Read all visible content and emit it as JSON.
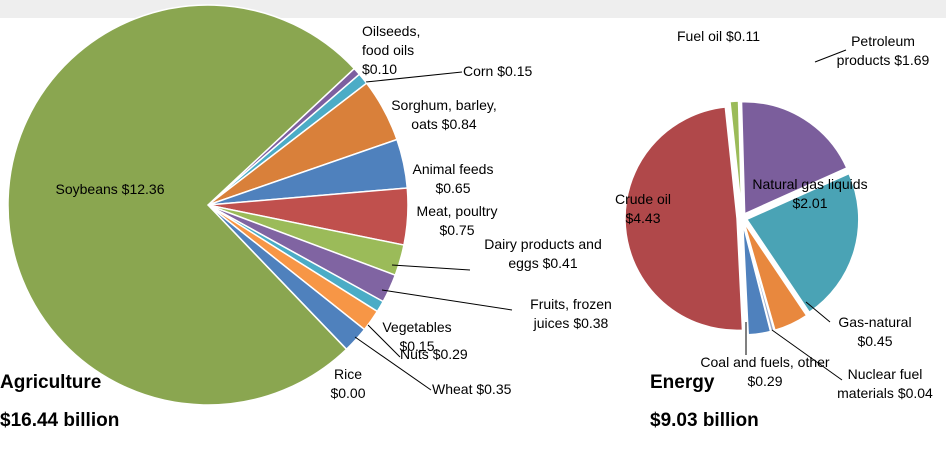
{
  "chart_data": [
    {
      "type": "pie",
      "title": "Agriculture",
      "subtitle": "$16.44 billion",
      "categories": [
        "Oilseeds, food oils",
        "Corn",
        "Sorghum, barley, oats",
        "Animal feeds",
        "Meat, poultry",
        "Dairy products and eggs",
        "Fruits, frozen juices",
        "Vegetables",
        "Nuts",
        "Wheat",
        "Rice",
        "Soybeans"
      ],
      "values": [
        0.1,
        0.15,
        0.84,
        0.65,
        0.75,
        0.41,
        0.38,
        0.15,
        0.29,
        0.35,
        0.0,
        12.36
      ],
      "value_labels": [
        "$0.10",
        "$0.15",
        "$0.84",
        "$0.65",
        "$0.75",
        "$0.41",
        "$0.38",
        "$0.15",
        "$0.29",
        "$0.35",
        "$0.00",
        "$12.36"
      ],
      "colors": [
        "#7d5fa0",
        "#4bacc6",
        "#d9803a",
        "#4f81bd",
        "#c0504d",
        "#9bbb59",
        "#8064a2",
        "#4bacc6",
        "#f79646",
        "#4f81bd",
        "#c0504d",
        "#8aa650"
      ]
    },
    {
      "type": "pie",
      "title": "Energy",
      "subtitle": "$9.03 billion",
      "categories": [
        "Fuel oil",
        "Petroleum products",
        "Natural gas liquids",
        "Gas-natural",
        "Nuclear fuel materials",
        "Coal and fuels, other",
        "Crude oil"
      ],
      "values": [
        0.11,
        1.69,
        2.01,
        0.45,
        0.04,
        0.29,
        4.43
      ],
      "value_labels": [
        "$0.11",
        "$1.69",
        "$2.01",
        "$0.45",
        "$0.04",
        "$0.29",
        "$4.43"
      ],
      "colors": [
        "#9bbb59",
        "#7b5e9c",
        "#4aa3b5",
        "#e8883e",
        "#9aa9c8",
        "#4f81bd",
        "#b0484a"
      ]
    }
  ]
}
